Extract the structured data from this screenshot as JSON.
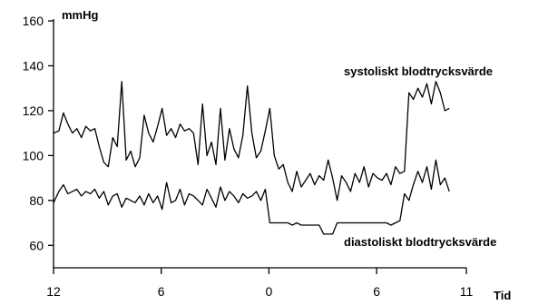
{
  "chart_data": {
    "type": "line",
    "title": "",
    "ylabel": "mmHg",
    "xlabel": "Tid",
    "ylim": [
      50,
      160
    ],
    "xlim": [
      0,
      23
    ],
    "y_ticks": [
      60,
      80,
      100,
      120,
      140,
      160
    ],
    "x_ticks": [
      {
        "value": 0,
        "label": "12"
      },
      {
        "value": 6,
        "label": "6"
      },
      {
        "value": 12,
        "label": "0"
      },
      {
        "value": 18,
        "label": "6"
      },
      {
        "value": 23,
        "label": "11"
      }
    ],
    "grid": false,
    "series": [
      {
        "name": "systoliskt blodtrycksvärde",
        "color": "#000000",
        "x": [
          0.0,
          0.3,
          0.55,
          0.8,
          1.05,
          1.3,
          1.55,
          1.8,
          2.05,
          2.3,
          2.55,
          2.8,
          3.05,
          3.3,
          3.55,
          3.8,
          4.05,
          4.3,
          4.55,
          4.8,
          5.05,
          5.3,
          5.55,
          5.8,
          6.05,
          6.3,
          6.55,
          6.8,
          7.05,
          7.3,
          7.55,
          7.8,
          8.05,
          8.3,
          8.55,
          8.8,
          9.05,
          9.3,
          9.55,
          9.8,
          10.05,
          10.3,
          10.55,
          10.8,
          11.05,
          11.3,
          11.55,
          11.8,
          12.05,
          12.3,
          12.55,
          12.8,
          13.05,
          13.3,
          13.55,
          13.8,
          14.05,
          14.3,
          14.55,
          14.8,
          15.05,
          15.3,
          15.55,
          15.8,
          16.05,
          16.3,
          16.55,
          16.8,
          17.05,
          17.3,
          17.55,
          17.8,
          18.05,
          18.3,
          18.55,
          18.8,
          19.05,
          19.3,
          19.55,
          19.8,
          20.05,
          20.3,
          20.55,
          20.8,
          21.05,
          21.3,
          21.55,
          21.8,
          22.05
        ],
        "values": [
          110,
          111,
          119,
          114,
          110,
          112,
          108,
          113,
          111,
          112,
          104,
          97,
          95,
          108,
          104,
          133,
          98,
          102,
          95,
          99,
          118,
          110,
          106,
          113,
          121,
          109,
          112,
          108,
          114,
          111,
          112,
          110,
          96,
          123,
          100,
          106,
          96,
          121,
          98,
          112,
          103,
          99,
          109,
          131,
          110,
          99,
          102,
          111,
          121,
          100,
          94,
          96,
          88,
          84,
          93,
          86,
          89,
          92,
          87,
          91,
          89,
          98,
          90,
          80,
          91,
          88,
          84,
          92,
          88,
          95,
          86,
          92,
          90,
          89,
          92,
          87,
          95,
          92,
          93,
          128,
          125,
          130,
          126,
          132,
          123,
          133,
          128,
          120,
          121
        ]
      },
      {
        "name": "diastoliskt blodtrycksvärde",
        "color": "#000000",
        "x": [
          0.0,
          0.3,
          0.55,
          0.8,
          1.05,
          1.3,
          1.55,
          1.8,
          2.05,
          2.3,
          2.55,
          2.8,
          3.05,
          3.3,
          3.55,
          3.8,
          4.05,
          4.3,
          4.55,
          4.8,
          5.05,
          5.3,
          5.55,
          5.8,
          6.05,
          6.3,
          6.55,
          6.8,
          7.05,
          7.3,
          7.55,
          7.8,
          8.05,
          8.3,
          8.55,
          8.8,
          9.05,
          9.3,
          9.55,
          9.8,
          10.05,
          10.3,
          10.55,
          10.8,
          11.05,
          11.3,
          11.55,
          11.8,
          12.05,
          12.3,
          12.55,
          12.8,
          13.05,
          13.3,
          13.55,
          13.8,
          14.05,
          14.3,
          14.55,
          14.8,
          15.05,
          15.3,
          15.55,
          15.8,
          16.05,
          16.3,
          16.55,
          16.8,
          17.05,
          17.3,
          17.55,
          17.8,
          18.05,
          18.3,
          18.55,
          18.8,
          19.05,
          19.3,
          19.55,
          19.8,
          20.05,
          20.3,
          20.55,
          20.8,
          21.05,
          21.3,
          21.55,
          21.8,
          22.05
        ],
        "values": [
          79,
          84,
          87,
          83,
          84,
          85,
          82,
          84,
          83,
          85,
          81,
          84,
          78,
          82,
          83,
          77,
          81,
          80,
          79,
          82,
          78,
          83,
          79,
          82,
          76,
          88,
          79,
          80,
          85,
          78,
          83,
          82,
          80,
          78,
          85,
          81,
          77,
          86,
          80,
          84,
          82,
          79,
          83,
          81,
          82,
          84,
          80,
          85,
          70,
          70,
          70,
          70,
          70,
          69,
          70,
          69,
          69,
          69,
          69,
          69,
          65,
          65,
          65,
          70,
          70,
          70,
          70,
          70,
          70,
          70,
          70,
          70,
          70,
          70,
          70,
          69,
          70,
          71,
          83,
          80,
          87,
          93,
          88,
          95,
          85,
          98,
          87,
          90,
          84
        ]
      }
    ]
  }
}
